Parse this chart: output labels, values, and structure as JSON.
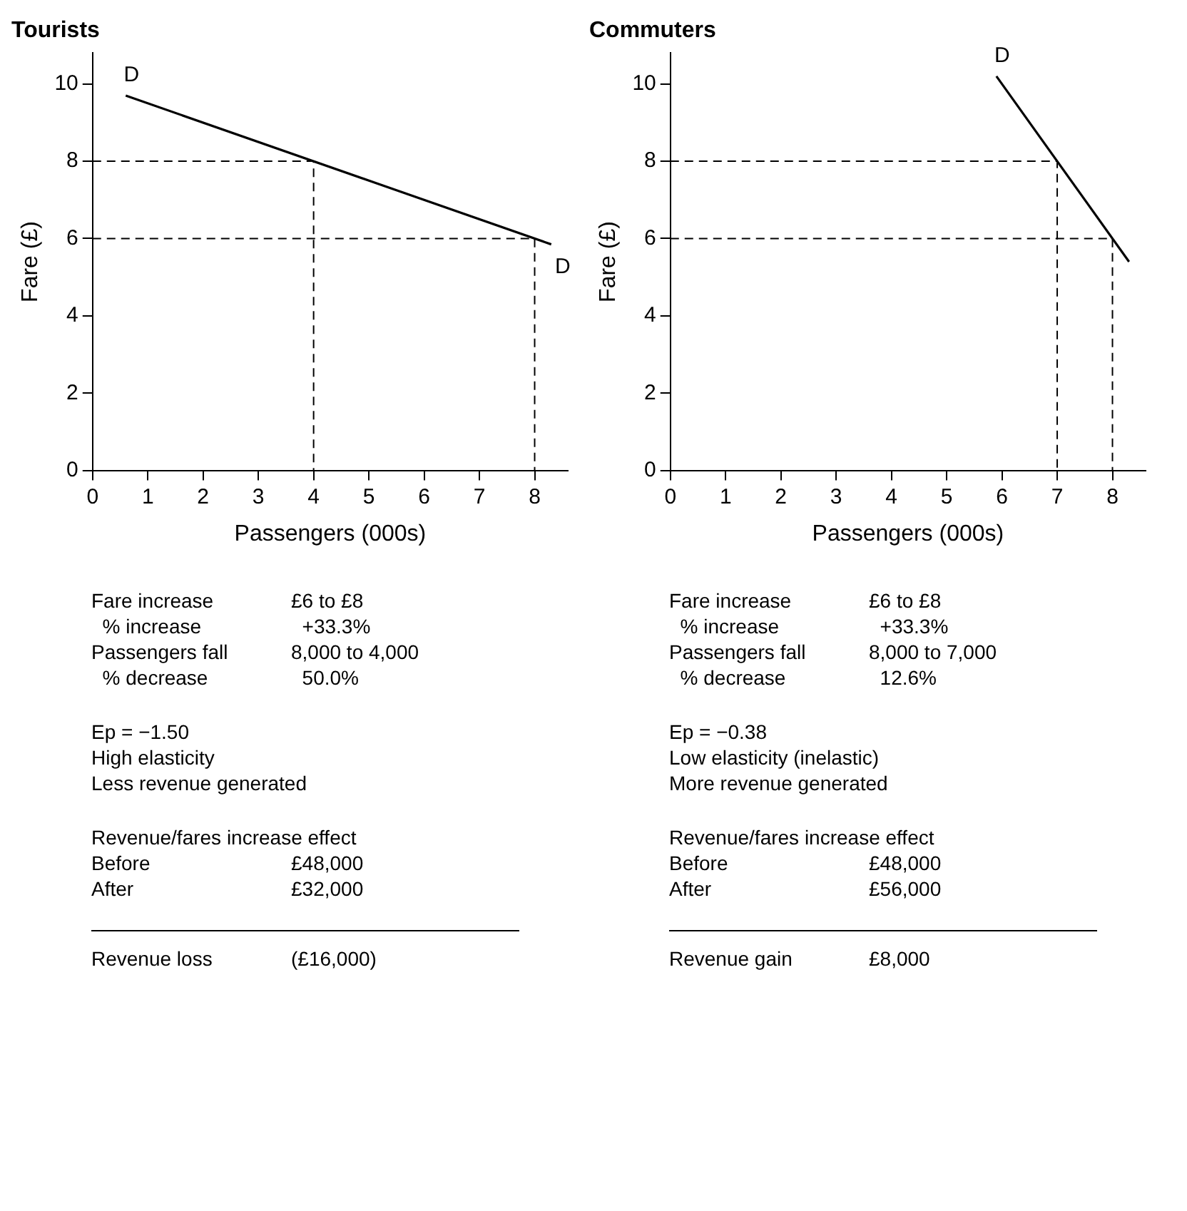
{
  "chart_data": [
    {
      "type": "line",
      "title": "Tourists",
      "xlabel": "Passengers (000s)",
      "ylabel": "Fare (£)",
      "xlim": [
        0,
        8.6
      ],
      "xticks": [
        0,
        1,
        2,
        3,
        4,
        5,
        6,
        7,
        8
      ],
      "ylim": [
        0,
        10.8
      ],
      "yticks": [
        0,
        2,
        4,
        6,
        8,
        10
      ],
      "grid": false,
      "legend": false,
      "marker": "none",
      "series": [
        {
          "color": "#000000",
          "line_style": "solid",
          "x": [
            0.6,
            8.3
          ],
          "values": [
            9.7,
            5.85
          ]
        },
        {
          "color": "#000000",
          "line_style": "dashed",
          "x": [
            0,
            4,
            4
          ],
          "values": [
            8,
            8,
            0
          ]
        },
        {
          "color": "#000000",
          "line_style": "dashed",
          "x": [
            0,
            8,
            8
          ],
          "values": [
            6,
            6,
            0
          ]
        }
      ],
      "annotations": [
        {
          "text": "D",
          "x": 0.6,
          "y": 9.7
        },
        {
          "text": "D",
          "x": 8.3,
          "y": 5.85
        },
        "Fare increase\t£6 to £8\n  % increase\t  +33.3%\nPassengers fall\t8,000 to 4,000\n  % decrease\t  50.0%",
        "Ep = −1.50\nHigh elasticity\nLess revenue generated",
        "Revenue/fares increase effect\nBefore\t£48,000\nAfter\t£32,000",
        "Revenue loss\t(£16,000)"
      ]
    },
    {
      "type": "line",
      "title": "Commuters",
      "xlabel": "Passengers (000s)",
      "ylabel": "Fare (£)",
      "xlim": [
        0,
        8.6
      ],
      "xticks": [
        0,
        1,
        2,
        3,
        4,
        5,
        6,
        7,
        8
      ],
      "ylim": [
        0,
        10.8
      ],
      "yticks": [
        0,
        2,
        4,
        6,
        8,
        10
      ],
      "grid": false,
      "legend": false,
      "marker": "none",
      "series": [
        {
          "color": "#000000",
          "line_style": "solid",
          "x": [
            5.9,
            8.3
          ],
          "values": [
            10.2,
            5.4
          ]
        },
        {
          "color": "#000000",
          "line_style": "dashed",
          "x": [
            0,
            7,
            7
          ],
          "values": [
            8,
            8,
            0
          ]
        },
        {
          "color": "#000000",
          "line_style": "dashed",
          "x": [
            0,
            8,
            8
          ],
          "values": [
            6,
            6,
            0
          ]
        }
      ],
      "annotations": [
        {
          "text": "D",
          "x": 5.9,
          "y": 10.2
        },
        "Fare increase\t£6 to £8\n  % increase\t  +33.3%\nPassengers fall\t8,000 to 7,000\n  % decrease\t  12.6%",
        "Ep = −0.38\nLow elasticity (inelastic)\nMore revenue generated",
        "Revenue/fares increase effect\nBefore\t£48,000\nAfter\t£56,000",
        "Revenue gain\t£8,000"
      ]
    }
  ]
}
